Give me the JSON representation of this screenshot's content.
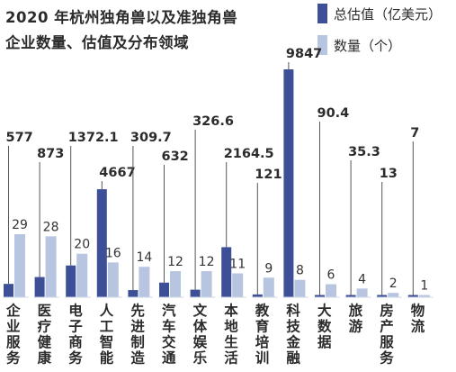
{
  "chart_data": {
    "type": "bar",
    "title_lines": [
      "2020 年杭州独角兽以及准独角兽",
      "企业数量、估值及分布领域"
    ],
    "categories": [
      "企业服务",
      "医疗健康",
      "电子商务",
      "人工智能",
      "先进制造",
      "汽车交通",
      "文体娱乐",
      "本地生活",
      "教育培训",
      "科技金融",
      "大数据",
      "旅游",
      "房产服务",
      "物流"
    ],
    "series": [
      {
        "name": "总估值（亿美元）",
        "color": "#3d4f96",
        "values": [
          577,
          873,
          1372.1,
          4667,
          309.7,
          632,
          326.6,
          2164.5,
          121,
          9847,
          90.4,
          35.3,
          13,
          7
        ],
        "labels": [
          "577",
          "873",
          "1372.1",
          "4667",
          "309.7",
          "632",
          "326.6",
          "2164.5",
          "121",
          "9847",
          "90.4",
          "35.3",
          "13",
          "7"
        ]
      },
      {
        "name": "数量（个）",
        "color": "#b7c5e0",
        "values": [
          29,
          28,
          20,
          16,
          14,
          12,
          12,
          11,
          9,
          8,
          6,
          4,
          2,
          1
        ],
        "labels": [
          "29",
          "28",
          "20",
          "16",
          "14",
          "12",
          "12",
          "11",
          "9",
          "8",
          "6",
          "4",
          "2",
          "1"
        ]
      }
    ],
    "label_color": "#2b2b2b",
    "leader_color": "#555555"
  }
}
